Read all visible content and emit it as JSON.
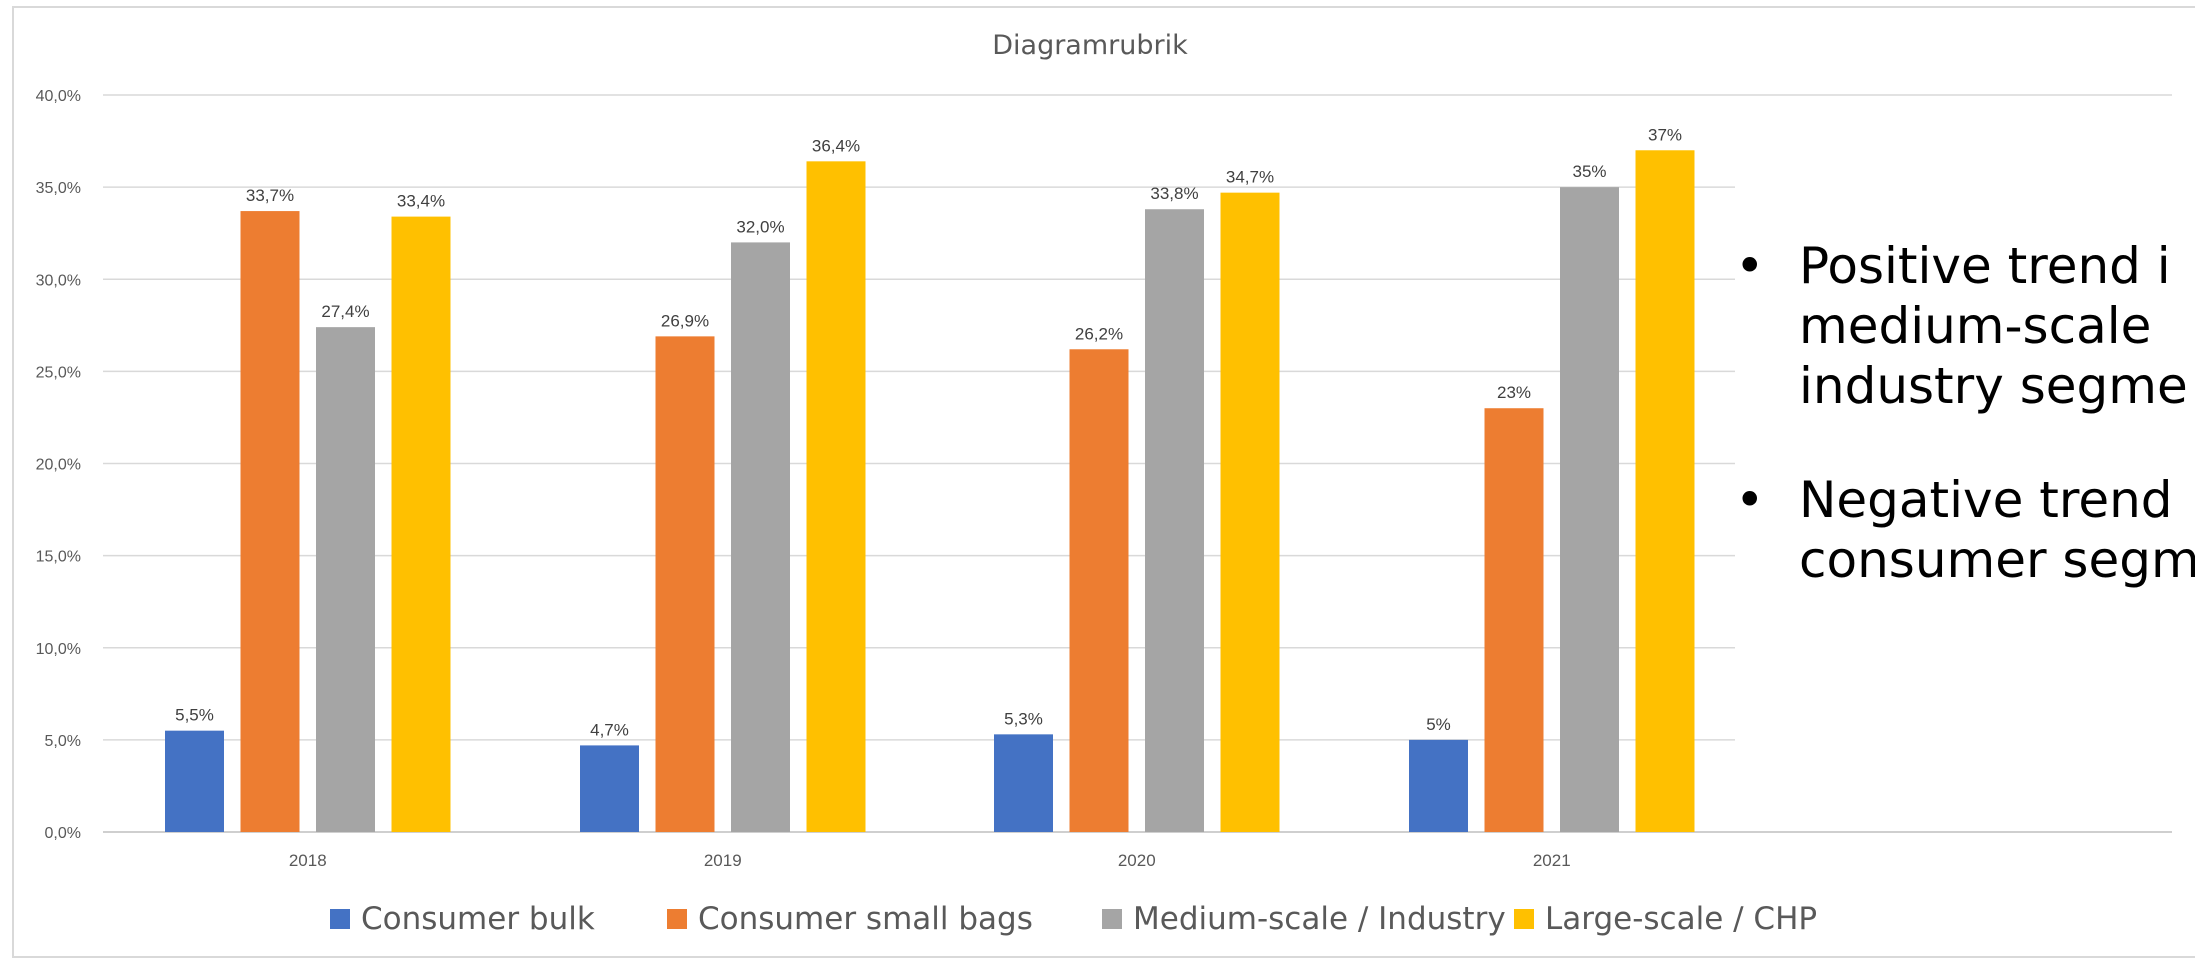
{
  "chart_data": {
    "type": "bar",
    "title": "Diagramrubrik",
    "categories": [
      "2018",
      "2019",
      "2020",
      "2021"
    ],
    "y_ticks": [
      "0,0%",
      "5,0%",
      "10,0%",
      "15,0%",
      "20,0%",
      "25,0%",
      "30,0%",
      "35,0%",
      "40,0%"
    ],
    "ylim": [
      0,
      40
    ],
    "grid": true,
    "legend_position": "bottom",
    "series": [
      {
        "name": "Consumer bulk",
        "color": "#4472C4",
        "values": [
          5.5,
          4.7,
          5.3,
          5.0
        ],
        "labels": [
          "5,5%",
          "4,7%",
          "5,3%",
          "5%"
        ]
      },
      {
        "name": "Consumer small bags",
        "color": "#ED7D31",
        "values": [
          33.7,
          26.9,
          26.2,
          23.0
        ],
        "labels": [
          "33,7%",
          "26,9%",
          "26,2%",
          "23%"
        ]
      },
      {
        "name": "Medium-scale / Industry",
        "color": "#A5A5A5",
        "values": [
          27.4,
          32.0,
          33.8,
          35.0
        ],
        "labels": [
          "27,4%",
          "32,0%",
          "33,8%",
          "35%"
        ]
      },
      {
        "name": "Large-scale / CHP",
        "color": "#FFC000",
        "values": [
          33.4,
          36.4,
          34.7,
          37.0
        ],
        "labels": [
          "33,4%",
          "36,4%",
          "34,7%",
          "37%"
        ]
      }
    ]
  },
  "bullets": [
    {
      "text": "Positive trend i\nmedium-scale\nindustry segme"
    },
    {
      "text": "Negative trend\nconsumer segm"
    }
  ]
}
